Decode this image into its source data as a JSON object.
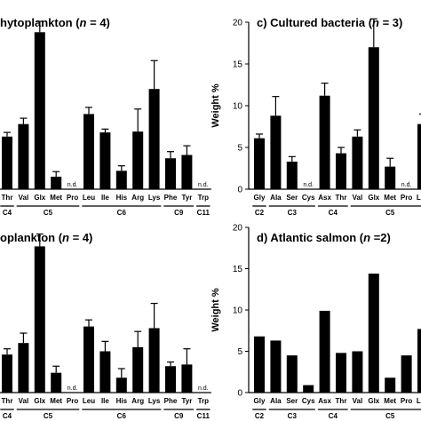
{
  "chart_data": [
    {
      "type": "bar",
      "panel": "a",
      "title_parts": [
        "hytoplankton (",
        "n",
        " = 4)"
      ],
      "ylim": [
        0,
        20
      ],
      "categories": [
        "Thr",
        "Val",
        "Glx",
        "Met",
        "Pro",
        "Leu",
        "Ile",
        "His",
        "Arg",
        "Lys",
        "Phe",
        "Tyr",
        "Trp"
      ],
      "values": [
        6.3,
        7.8,
        18.8,
        1.5,
        null,
        9.0,
        6.8,
        2.2,
        6.9,
        12.0,
        3.7,
        4.1,
        null
      ],
      "errors": [
        0.5,
        0.7,
        1.3,
        0.6,
        null,
        0.8,
        0.4,
        0.6,
        2.7,
        3.4,
        0.8,
        1.1,
        null
      ],
      "nd_label": "n.d.",
      "groups": [
        {
          "label": "C4",
          "from": 0,
          "to": 0
        },
        {
          "label": "C5",
          "from": 1,
          "to": 4
        },
        {
          "label": "C6",
          "from": 5,
          "to": 9
        },
        {
          "label": "C9",
          "from": 10,
          "to": 11
        },
        {
          "label": "C11",
          "from": 12,
          "to": 12
        }
      ]
    },
    {
      "type": "bar",
      "panel": "c",
      "title_parts": [
        "c) Cultured bacteria (",
        "n",
        " = 3)"
      ],
      "ylabel": "Weight %",
      "ylim": [
        0,
        20
      ],
      "yticks": [
        0,
        5,
        10,
        15,
        20
      ],
      "categories": [
        "Gly",
        "Ala",
        "Ser",
        "Cys",
        "Asx",
        "Thr",
        "Val",
        "Glx",
        "Met",
        "Pro",
        "Leu"
      ],
      "values": [
        6.1,
        8.8,
        3.3,
        null,
        11.2,
        4.3,
        6.3,
        17.0,
        2.7,
        null,
        7.8
      ],
      "errors": [
        0.5,
        2.3,
        0.6,
        null,
        1.5,
        0.7,
        0.8,
        3.4,
        1.0,
        null,
        1.2
      ],
      "nd_label": "n.d.",
      "groups": [
        {
          "label": "C2",
          "from": 0,
          "to": 0
        },
        {
          "label": "C3",
          "from": 1,
          "to": 3
        },
        {
          "label": "C4",
          "from": 4,
          "to": 5
        },
        {
          "label": "C5",
          "from": 6,
          "to": 10
        }
      ]
    },
    {
      "type": "bar",
      "panel": "b",
      "title_parts": [
        "oplankton (",
        "n",
        " = 4)"
      ],
      "ylim": [
        0,
        20
      ],
      "categories": [
        "Thr",
        "Val",
        "Glx",
        "Met",
        "Pro",
        "Leu",
        "Ile",
        "His",
        "Arg",
        "Lys",
        "Phe",
        "Tyr",
        "Trp"
      ],
      "values": [
        4.6,
        6.0,
        17.7,
        2.4,
        null,
        8.0,
        5.0,
        1.8,
        5.5,
        7.8,
        3.2,
        3.4,
        null
      ],
      "errors": [
        0.7,
        1.2,
        1.5,
        0.8,
        null,
        0.8,
        1.2,
        1.1,
        1.9,
        3.0,
        0.5,
        1.9,
        null
      ],
      "nd_label": "n.d.",
      "groups": [
        {
          "label": "C4",
          "from": 0,
          "to": 0
        },
        {
          "label": "C5",
          "from": 1,
          "to": 4
        },
        {
          "label": "C6",
          "from": 5,
          "to": 9
        },
        {
          "label": "C9",
          "from": 10,
          "to": 11
        },
        {
          "label": "C11",
          "from": 12,
          "to": 12
        }
      ]
    },
    {
      "type": "bar",
      "panel": "d",
      "title_parts": [
        "d) Atlantic salmon (",
        "n",
        " =2)"
      ],
      "ylabel": "Weight %",
      "ylim": [
        0,
        20
      ],
      "yticks": [
        0,
        5,
        10,
        15,
        20
      ],
      "categories": [
        "Gly",
        "Ala",
        "Ser",
        "Cys",
        "Asx",
        "Thr",
        "Val",
        "Glx",
        "Met",
        "Pro",
        "Leu"
      ],
      "values": [
        6.8,
        6.3,
        4.5,
        0.9,
        9.9,
        4.8,
        5.0,
        14.4,
        1.8,
        4.5,
        7.7
      ],
      "errors": [
        null,
        null,
        null,
        null,
        null,
        null,
        null,
        null,
        null,
        null,
        null
      ],
      "nd_label": "n.d.",
      "groups": [
        {
          "label": "C2",
          "from": 0,
          "to": 0
        },
        {
          "label": "C3",
          "from": 1,
          "to": 3
        },
        {
          "label": "C4",
          "from": 4,
          "to": 5
        },
        {
          "label": "C5",
          "from": 6,
          "to": 10
        }
      ]
    }
  ]
}
